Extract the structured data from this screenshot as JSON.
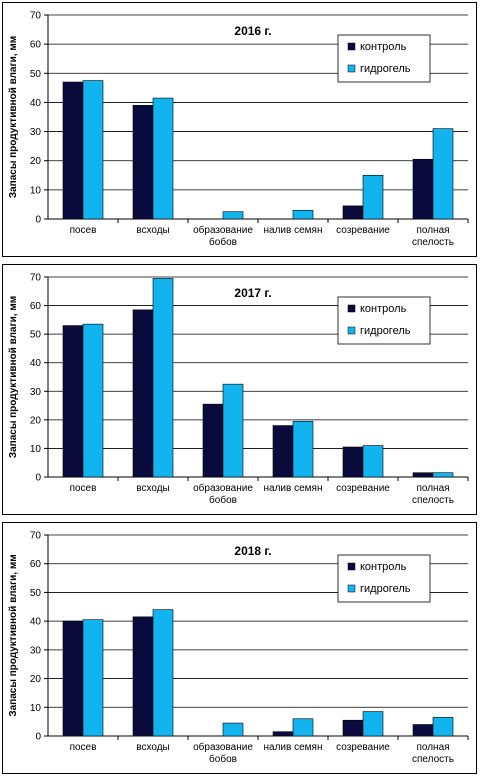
{
  "chart_data": [
    {
      "type": "bar",
      "title": "2016 г.",
      "ylabel": "Запасы продуктивной влаги, мм",
      "ylim": [
        0,
        70
      ],
      "yticks": [
        "0",
        "10",
        "20",
        "30",
        "40",
        "50",
        "60",
        "70"
      ],
      "categories": [
        [
          "посев"
        ],
        [
          "всходы"
        ],
        [
          "образование",
          "бобов"
        ],
        [
          "налив семян"
        ],
        [
          "созревание"
        ],
        [
          "полная",
          "спелость"
        ]
      ],
      "series": [
        {
          "name": "контроль",
          "color": "#0a0a3c",
          "values": [
            47,
            39,
            0,
            0,
            4.5,
            20.5
          ]
        },
        {
          "name": "гидрогель",
          "color": "#12b4f0",
          "values": [
            47.5,
            41.5,
            2.5,
            3,
            15,
            31
          ]
        }
      ],
      "legend": "top-right",
      "grid": true
    },
    {
      "type": "bar",
      "title": "2017 г.",
      "ylabel": "Запасы продуктивной влаги, мм",
      "ylim": [
        0,
        70
      ],
      "yticks": [
        "0",
        "10",
        "20",
        "30",
        "40",
        "50",
        "60",
        "70"
      ],
      "categories": [
        [
          "посев"
        ],
        [
          "всходы"
        ],
        [
          "образование",
          "бобов"
        ],
        [
          "налив семян"
        ],
        [
          "созревание"
        ],
        [
          "полная",
          "спелость"
        ]
      ],
      "series": [
        {
          "name": "контроль",
          "color": "#0a0a3c",
          "values": [
            53,
            58.5,
            25.5,
            18,
            10.5,
            1.5
          ]
        },
        {
          "name": "гидрогель",
          "color": "#12b4f0",
          "values": [
            53.5,
            69.5,
            32.5,
            19.5,
            11,
            1.5
          ]
        }
      ],
      "legend": "top-right",
      "grid": true
    },
    {
      "type": "bar",
      "title": "2018 г.",
      "ylabel": "Запасы продуктивной влаги, мм",
      "ylim": [
        0,
        70
      ],
      "yticks": [
        "0",
        "10",
        "20",
        "30",
        "40",
        "50",
        "60",
        "70"
      ],
      "categories": [
        [
          "посев"
        ],
        [
          "всходы"
        ],
        [
          "образование",
          "бобов"
        ],
        [
          "налив семян"
        ],
        [
          "созревание"
        ],
        [
          "полная",
          "спелость"
        ]
      ],
      "series": [
        {
          "name": "контроль",
          "color": "#0a0a3c",
          "values": [
            40,
            41.5,
            0,
            1.5,
            5.5,
            4
          ]
        },
        {
          "name": "гидрогель",
          "color": "#12b4f0",
          "values": [
            40.5,
            44,
            4.5,
            6,
            8.5,
            6.5
          ]
        }
      ],
      "legend": "top-right",
      "grid": true
    }
  ]
}
